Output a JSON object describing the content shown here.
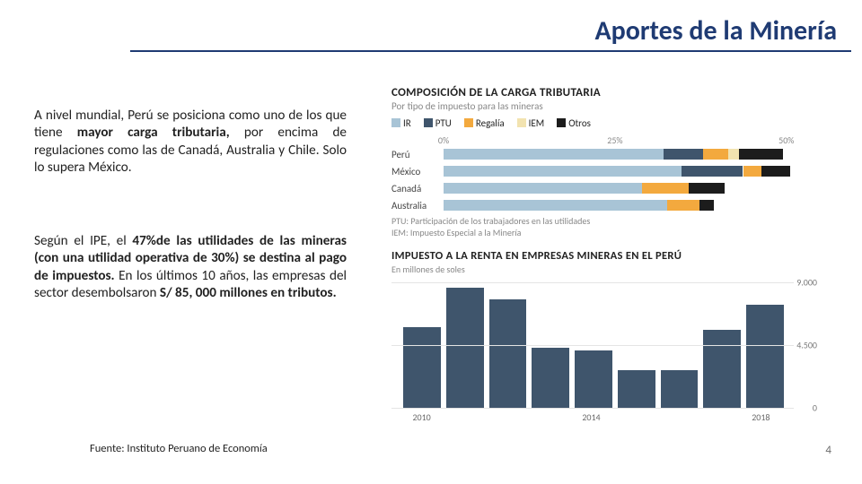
{
  "title": {
    "text": "Aportes de la Minería",
    "color": "#1f3b73"
  },
  "rule_color": "#1f3b73",
  "paragraphs": {
    "p1_pre": "A nivel mundial, Perú se posiciona como uno de los que tiene ",
    "p1_bold": "mayor carga tributaria,",
    "p1_post": " por encima de regulaciones como las de Canadá, Australia y Chile. Solo lo supera México.",
    "p2_pre": "Según el IPE, el ",
    "p2_bold": "47%de las utilidades de las mineras (con una utilidad operativa de 30%) se destina al pago de impuestos.",
    "p2_mid": " En los últimos 10 años, las empresas del sector desembolsaron ",
    "p2_bold2": "S/ 85, 000 millones en tributos.",
    "p2_post": ""
  },
  "source": "Fuente: Instituto Peruano de Economía",
  "page_number": "4",
  "chart1": {
    "title": "COMPOSICIÓN DE LA CARGA TRIBUTARIA",
    "subtitle": "Por tipo de impuesto para las mineras",
    "legend": [
      {
        "label": "IR",
        "color": "#a8c4d6"
      },
      {
        "label": "PTU",
        "color": "#3f556c"
      },
      {
        "label": "Regalía",
        "color": "#f3a93e"
      },
      {
        "label": "IEM",
        "color": "#f2e3b0"
      },
      {
        "label": "Otros",
        "color": "#1c1c1c"
      }
    ],
    "axis_max": 55,
    "axis_ticks": [
      {
        "at": 0,
        "label": "0%"
      },
      {
        "at": 25,
        "label": "25%"
      },
      {
        "at": 50,
        "label": "50%"
      }
    ],
    "rows": [
      {
        "label": "Perú",
        "segs": [
          30.5,
          5.5,
          3.5,
          1.5,
          6.0
        ]
      },
      {
        "label": "México",
        "segs": [
          33.0,
          8.5,
          2.5,
          0.0,
          4.0
        ]
      },
      {
        "label": "Canadá",
        "segs": [
          27.5,
          0.0,
          6.5,
          0.0,
          5.0
        ]
      },
      {
        "label": "Australia",
        "segs": [
          31.0,
          0.0,
          4.5,
          0.0,
          2.0
        ]
      }
    ],
    "footnote_l1": "PTU: Participación de los trabajadores en las utilidades",
    "footnote_l2": "IEM: Impuesto Especial a la Minería"
  },
  "chart2": {
    "title": "IMPUESTO A LA RENTA EN EMPRESAS MINERAS EN EL PERÚ",
    "subtitle": "En millones de soles",
    "y_max": 9000,
    "y_ticks": [
      {
        "v": 9000,
        "label": "9.000"
      },
      {
        "v": 4500,
        "label": "4.500"
      },
      {
        "v": 0,
        "label": "0"
      }
    ],
    "bar_color": "#3f556c",
    "years": [
      2010,
      2011,
      2012,
      2013,
      2014,
      2015,
      2016,
      2017,
      2018
    ],
    "values": [
      5800,
      8600,
      7800,
      4300,
      4100,
      2700,
      2700,
      5600,
      7400
    ],
    "x_labels_shown": [
      "2010",
      "",
      "",
      "",
      "2014",
      "",
      "",
      "",
      "2018"
    ]
  }
}
